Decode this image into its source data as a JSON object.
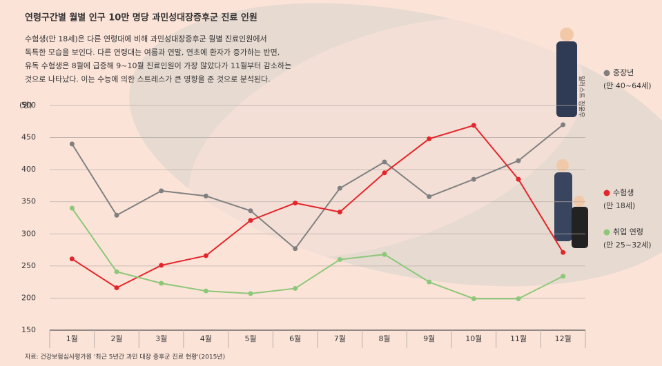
{
  "chart_data": {
    "type": "line",
    "title": "연령구간별 월별 인구 10만 명당 과민성대장증후군 진료 인원",
    "description": [
      "수험생(만 18세)은 다른 연령대에 비해 과민성대장증후군 월별 진료인원에서",
      "독특한 모습을 보인다. 다른 연령대는 여름과 연말, 연초에 환자가 증가하는 반면,",
      "유독 수험생은 8월에 급증해 9~10월 진료인원이 가장 많았다가 11월부터 감소하는",
      "것으로 나타났다. 이는 수능에 의한 스트레스가 큰 영향을 준 것으로 분석된다."
    ],
    "y_unit": "(명)",
    "source": "자료: 건강보험심사평가원 '최근 5년간 과민 대장 증후군 진료 현황'(2015년)",
    "credit": "일러스트 정윤우",
    "categories": [
      "1월",
      "2월",
      "3월",
      "4월",
      "5월",
      "6월",
      "7월",
      "8월",
      "9월",
      "10월",
      "11월",
      "12월"
    ],
    "series": [
      {
        "name": "중장년",
        "subtitle": "(만 40~64세)",
        "color": "#808080",
        "values": [
          440,
          329,
          367,
          359,
          336,
          277,
          371,
          412,
          358,
          385,
          414,
          470
        ]
      },
      {
        "name": "수험생",
        "subtitle": "(만 18세)",
        "color": "#e3262b",
        "values": [
          261,
          216,
          251,
          266,
          321,
          348,
          334,
          395,
          448,
          469,
          385,
          271
        ]
      },
      {
        "name": "취업 연령",
        "subtitle": "(만 25~32세)",
        "color": "#8cc878",
        "values": [
          340,
          241,
          223,
          211,
          207,
          215,
          260,
          268,
          225,
          199,
          199,
          234
        ]
      }
    ],
    "ylim": [
      150,
      500
    ],
    "yticks": [
      150,
      200,
      250,
      300,
      350,
      400,
      450,
      500
    ],
    "grid": true
  }
}
